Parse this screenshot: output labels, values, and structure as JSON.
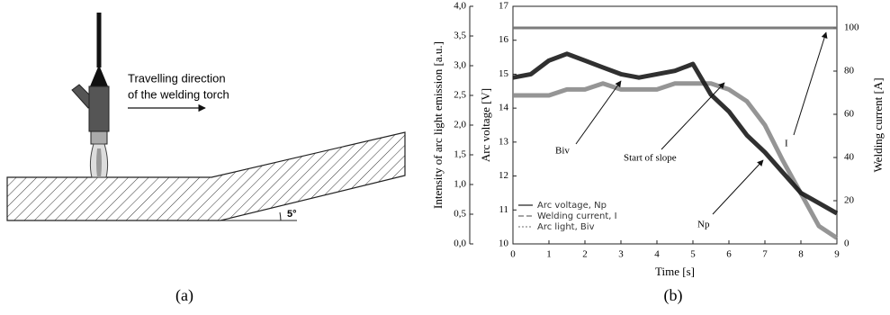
{
  "panel_a": {
    "label": "(a)",
    "annotation_line1": "Travelling direction",
    "annotation_line2": "of the welding torch",
    "angle_label": "5°"
  },
  "panel_b_label": "(b)",
  "chart_data": {
    "type": "line",
    "xlabel": "Time [s]",
    "ylabel": "Arc voltage [V]",
    "y2label": "Welding current [A]",
    "y3label": "Intensity of arc light emission [a.u.]",
    "x": [
      0,
      0.5,
      1,
      1.5,
      2,
      2.5,
      3,
      3.5,
      4,
      4.5,
      5,
      5.5,
      6,
      6.5,
      7,
      7.5,
      8,
      8.5,
      9
    ],
    "xlim": [
      0,
      9
    ],
    "xticks": [
      0,
      1,
      2,
      3,
      4,
      5,
      6,
      7,
      8,
      9
    ],
    "ylim": [
      10,
      17
    ],
    "yticks": [
      10,
      11,
      12,
      13,
      14,
      15,
      16,
      17
    ],
    "y2lim": [
      0,
      110
    ],
    "y2ticks": [
      0,
      20,
      40,
      60,
      80,
      100
    ],
    "y3lim": [
      0,
      4
    ],
    "y3ticks": [
      {
        "value": 0,
        "label": "0,0"
      },
      {
        "value": 0.5,
        "label": "0,5"
      },
      {
        "value": 1,
        "label": "1,0"
      },
      {
        "value": 1.5,
        "label": "1,5"
      },
      {
        "value": 2,
        "label": "2,0"
      },
      {
        "value": 2.5,
        "label": "2,5"
      },
      {
        "value": 3,
        "label": "3,0"
      },
      {
        "value": 3.5,
        "label": "3,5"
      },
      {
        "value": 4,
        "label": "4,0"
      }
    ],
    "series": [
      {
        "name": "Arc voltage, Np",
        "color": "#1a1a1a",
        "line_style": "solid",
        "axis": "y",
        "values": [
          14.9,
          15.0,
          15.4,
          15.6,
          15.4,
          15.2,
          15.0,
          14.9,
          15.0,
          15.1,
          15.3,
          14.4,
          13.9,
          13.2,
          12.7,
          12.1,
          11.5,
          11.2,
          10.9
        ]
      },
      {
        "name": "Welding current, I",
        "color": "#6e6e6e",
        "line_style": "dashed",
        "axis": "y2",
        "values": [
          100,
          100,
          100,
          100,
          100,
          100,
          100,
          100,
          100,
          100,
          100,
          100,
          100,
          100,
          100,
          100,
          100,
          100,
          100
        ]
      },
      {
        "name": "Arc light, Biv",
        "color": "#8a8a8a",
        "line_style": "dotted",
        "axis": "y3",
        "values": [
          2.5,
          2.5,
          2.5,
          2.6,
          2.6,
          2.7,
          2.6,
          2.6,
          2.6,
          2.7,
          2.7,
          2.7,
          2.6,
          2.4,
          2.0,
          1.4,
          0.85,
          0.3,
          0.1
        ]
      }
    ],
    "annotations": [
      "Biv",
      "Start of slope",
      "Np",
      "I"
    ]
  }
}
